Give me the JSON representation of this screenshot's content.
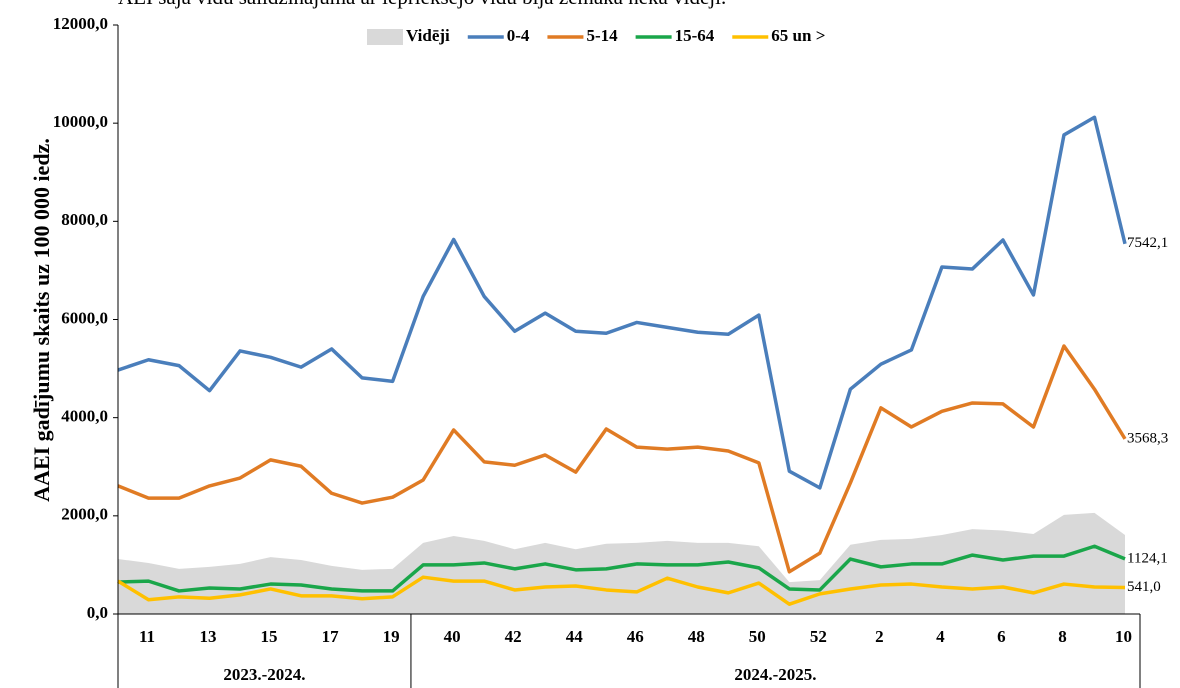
{
  "chart_data": {
    "type": "line",
    "title": "AEI šajā vidū salīdzinājumā ar iepriekšējo vidū bija zemākā nekā vidēji.",
    "y_label": "AAEI gadījumu skaits uz 100 000 iedz.",
    "categories": [
      "11",
      null,
      "13",
      null,
      "15",
      null,
      "17",
      null,
      "19",
      null,
      "40",
      null,
      "42",
      null,
      "44",
      null,
      "46",
      null,
      "48",
      null,
      "50",
      null,
      "52",
      null,
      "2",
      null,
      "4",
      null,
      "6",
      null,
      "8",
      null,
      "10",
      null
    ],
    "groups": [
      {
        "label": "2023.-2024.",
        "count": 10
      },
      {
        "label": "2024.-2025.",
        "count": 24
      }
    ],
    "ylim": [
      0,
      12000
    ],
    "yticks": [
      {
        "value": 0,
        "label": "0,0"
      },
      {
        "value": 2000,
        "label": "2000,0"
      },
      {
        "value": 4000,
        "label": "4000,0"
      },
      {
        "value": 6000,
        "label": "6000,0"
      },
      {
        "value": 8000,
        "label": "8000,0"
      },
      {
        "value": 10000,
        "label": "10000,0"
      },
      {
        "value": 12000,
        "label": "12000,0"
      }
    ],
    "grid": false,
    "legend": "top",
    "series": [
      {
        "name": "Vidēji",
        "type": "area",
        "color": "#d9d9d9",
        "values": [
          1120,
          1040,
          920,
          960,
          1020,
          1160,
          1100,
          980,
          900,
          920,
          1450,
          1590,
          1490,
          1320,
          1450,
          1320,
          1430,
          1450,
          1490,
          1450,
          1450,
          1380,
          650,
          690,
          1410,
          1510,
          1530,
          1610,
          1730,
          1700,
          1630,
          2020,
          2060,
          1610
        ]
      },
      {
        "name": "0-4",
        "type": "line",
        "color": "#4a7ebb",
        "values": [
          4970,
          5180,
          5060,
          4550,
          5360,
          5230,
          5030,
          5400,
          4810,
          4740,
          6470,
          7630,
          6470,
          5760,
          6130,
          5760,
          5720,
          5940,
          5840,
          5740,
          5700,
          6090,
          2910,
          2570,
          4580,
          5090,
          5380,
          7070,
          7030,
          7620,
          6500,
          9760,
          10120,
          7542.1
        ],
        "value_labels": [
          null,
          null,
          null,
          null,
          null,
          null,
          null,
          null,
          null,
          null,
          null,
          null,
          null,
          null,
          null,
          null,
          null,
          null,
          null,
          null,
          null,
          null,
          null,
          null,
          null,
          null,
          null,
          null,
          null,
          null,
          null,
          null,
          null,
          "7542,1"
        ]
      },
      {
        "name": "5-14",
        "type": "line",
        "color": "#e07b24",
        "values": [
          2610,
          2360,
          2360,
          2610,
          2770,
          3140,
          3010,
          2460,
          2260,
          2380,
          2730,
          3750,
          3100,
          3030,
          3240,
          2890,
          3770,
          3400,
          3360,
          3400,
          3320,
          3080,
          860,
          1240,
          2670,
          4200,
          3810,
          4130,
          4300,
          4280,
          3810,
          5460,
          4580,
          3568.3
        ],
        "value_labels": [
          null,
          null,
          null,
          null,
          null,
          null,
          null,
          null,
          null,
          null,
          null,
          null,
          null,
          null,
          null,
          null,
          null,
          null,
          null,
          null,
          null,
          null,
          null,
          null,
          null,
          null,
          null,
          null,
          null,
          null,
          null,
          null,
          null,
          "3568,3"
        ]
      },
      {
        "name": "15-64",
        "type": "line",
        "color": "#1aa64a",
        "values": [
          650,
          670,
          470,
          530,
          510,
          610,
          590,
          510,
          470,
          470,
          1000,
          1000,
          1040,
          920,
          1020,
          900,
          920,
          1020,
          1000,
          1000,
          1060,
          940,
          510,
          490,
          1120,
          960,
          1020,
          1020,
          1200,
          1100,
          1180,
          1180,
          1380,
          1124.1
        ],
        "value_labels": [
          null,
          null,
          null,
          null,
          null,
          null,
          null,
          null,
          null,
          null,
          null,
          null,
          null,
          null,
          null,
          null,
          null,
          null,
          null,
          null,
          null,
          null,
          null,
          null,
          null,
          null,
          null,
          null,
          null,
          null,
          null,
          null,
          null,
          "1124,1"
        ]
      },
      {
        "name": "65 un >",
        "type": "line",
        "color": "#ffc000",
        "values": [
          670,
          290,
          350,
          320,
          390,
          510,
          370,
          370,
          310,
          350,
          750,
          670,
          670,
          490,
          550,
          570,
          490,
          450,
          730,
          550,
          430,
          630,
          200,
          410,
          510,
          590,
          610,
          550,
          510,
          550,
          430,
          610,
          550,
          541.0
        ],
        "value_labels": [
          null,
          null,
          null,
          null,
          null,
          null,
          null,
          null,
          null,
          null,
          null,
          null,
          null,
          null,
          null,
          null,
          null,
          null,
          null,
          null,
          null,
          null,
          null,
          null,
          null,
          null,
          null,
          null,
          null,
          null,
          null,
          null,
          null,
          "541,0"
        ]
      }
    ]
  }
}
